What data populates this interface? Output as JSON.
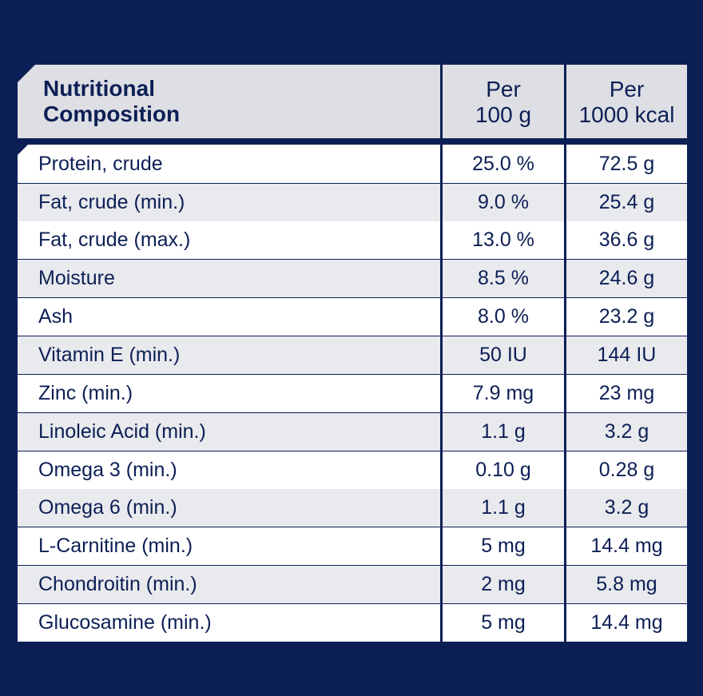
{
  "header": {
    "label_line1": "Nutritional",
    "label_line2": "Composition",
    "col1_line1": "Per",
    "col1_line2": "100 g",
    "col2_line1": "Per",
    "col2_line2": "1000 kcal"
  },
  "rows": [
    {
      "nutrient": "Protein, crude",
      "per_100g": "25.0 %",
      "per_1000kcal": "72.5 g"
    },
    {
      "nutrient": "Fat, crude (min.)",
      "per_100g": "9.0 %",
      "per_1000kcal": "25.4 g"
    },
    {
      "nutrient": "Fat, crude (max.)",
      "per_100g": "13.0 %",
      "per_1000kcal": "36.6 g"
    },
    {
      "nutrient": "Moisture",
      "per_100g": "8.5 %",
      "per_1000kcal": "24.6 g"
    },
    {
      "nutrient": "Ash",
      "per_100g": "8.0 %",
      "per_1000kcal": "23.2 g"
    },
    {
      "nutrient": "Vitamin E (min.)",
      "per_100g": "50 IU",
      "per_1000kcal": "144 IU"
    },
    {
      "nutrient": "Zinc (min.)",
      "per_100g": "7.9 mg",
      "per_1000kcal": "23 mg"
    },
    {
      "nutrient": "Linoleic Acid (min.)",
      "per_100g": "1.1 g",
      "per_1000kcal": "3.2 g"
    },
    {
      "nutrient": "Omega 3 (min.)",
      "per_100g": "0.10 g",
      "per_1000kcal": "0.28 g"
    },
    {
      "nutrient": "Omega 6 (min.)",
      "per_100g": "1.1 g",
      "per_1000kcal": "3.2 g"
    },
    {
      "nutrient": "L-Carnitine (min.)",
      "per_100g": "5 mg",
      "per_1000kcal": "14.4 mg"
    },
    {
      "nutrient": "Chondroitin (min.)",
      "per_100g": "2 mg",
      "per_1000kcal": "5.8 mg"
    },
    {
      "nutrient": "Glucosamine (min.)",
      "per_100g": "5 mg",
      "per_1000kcal": "14.4 mg"
    }
  ],
  "colors": {
    "background": "#0c1f55",
    "header_bg": "#dedfe4",
    "row_light": "#ffffff",
    "row_shaded": "#e9eaee",
    "text": "#0c1f55"
  }
}
